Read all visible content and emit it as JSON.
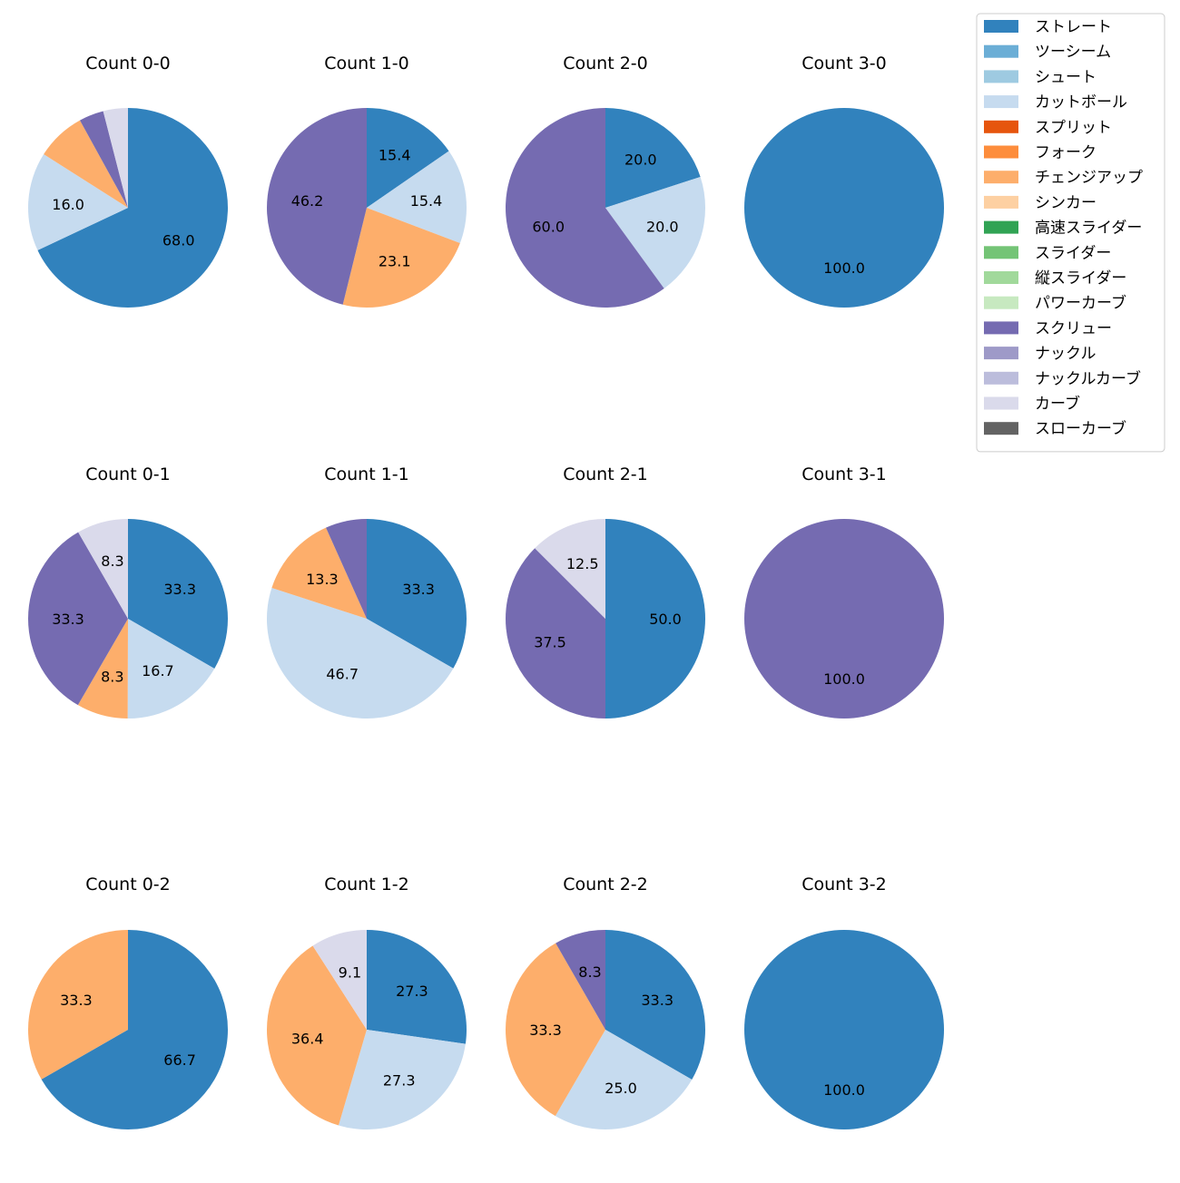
{
  "colors": {
    "ストレート": "#3182bd",
    "ツーシーム": "#6baed6",
    "シュート": "#9ecae1",
    "カットボール": "#c6dbef",
    "スプリット": "#e6550d",
    "フォーク": "#fd8d3c",
    "チェンジアップ": "#fdae6b",
    "シンカー": "#fdd0a2",
    "高速スライダー": "#31a354",
    "スライダー": "#74c476",
    "縦スライダー": "#a1d99b",
    "パワーカーブ": "#c7e9c0",
    "スクリュー": "#756bb1",
    "ナックル": "#9e9ac8",
    "ナックルカーブ": "#bcbddc",
    "カーブ": "#dadaeb",
    "スローカーブ": "#636363"
  },
  "legend": [
    "ストレート",
    "ツーシーム",
    "シュート",
    "カットボール",
    "スプリット",
    "フォーク",
    "チェンジアップ",
    "シンカー",
    "高速スライダー",
    "スライダー",
    "縦スライダー",
    "パワーカーブ",
    "スクリュー",
    "ナックル",
    "ナックルカーブ",
    "カーブ",
    "スローカーブ"
  ],
  "chart_data": [
    {
      "type": "pie",
      "title": "Count 0-0",
      "slices": [
        {
          "label": "ストレート",
          "value": 68.0,
          "text": "68.0"
        },
        {
          "label": "カットボール",
          "value": 16.0,
          "text": "16.0"
        },
        {
          "label": "チェンジアップ",
          "value": 8.0,
          "text": ""
        },
        {
          "label": "スクリュー",
          "value": 4.0,
          "text": ""
        },
        {
          "label": "カーブ",
          "value": 4.0,
          "text": ""
        }
      ]
    },
    {
      "type": "pie",
      "title": "Count 1-0",
      "slices": [
        {
          "label": "ストレート",
          "value": 15.4,
          "text": "15.4"
        },
        {
          "label": "カットボール",
          "value": 15.4,
          "text": "15.4"
        },
        {
          "label": "チェンジアップ",
          "value": 23.1,
          "text": "23.1"
        },
        {
          "label": "スクリュー",
          "value": 46.2,
          "text": "46.2"
        }
      ]
    },
    {
      "type": "pie",
      "title": "Count 2-0",
      "slices": [
        {
          "label": "ストレート",
          "value": 20.0,
          "text": "20.0"
        },
        {
          "label": "カットボール",
          "value": 20.0,
          "text": "20.0"
        },
        {
          "label": "スクリュー",
          "value": 60.0,
          "text": "60.0"
        }
      ]
    },
    {
      "type": "pie",
      "title": "Count 3-0",
      "slices": [
        {
          "label": "ストレート",
          "value": 100.0,
          "text": "100.0"
        }
      ]
    },
    {
      "type": "pie",
      "title": "Count 0-1",
      "slices": [
        {
          "label": "ストレート",
          "value": 33.3,
          "text": "33.3"
        },
        {
          "label": "カットボール",
          "value": 16.7,
          "text": "16.7"
        },
        {
          "label": "チェンジアップ",
          "value": 8.3,
          "text": "8.3"
        },
        {
          "label": "スクリュー",
          "value": 33.3,
          "text": "33.3"
        },
        {
          "label": "カーブ",
          "value": 8.3,
          "text": "8.3"
        }
      ]
    },
    {
      "type": "pie",
      "title": "Count 1-1",
      "slices": [
        {
          "label": "ストレート",
          "value": 33.3,
          "text": "33.3"
        },
        {
          "label": "カットボール",
          "value": 46.7,
          "text": "46.7"
        },
        {
          "label": "チェンジアップ",
          "value": 13.3,
          "text": "13.3"
        },
        {
          "label": "スクリュー",
          "value": 6.7,
          "text": ""
        }
      ]
    },
    {
      "type": "pie",
      "title": "Count 2-1",
      "slices": [
        {
          "label": "ストレート",
          "value": 50.0,
          "text": "50.0"
        },
        {
          "label": "スクリュー",
          "value": 37.5,
          "text": "37.5"
        },
        {
          "label": "カーブ",
          "value": 12.5,
          "text": "12.5"
        }
      ]
    },
    {
      "type": "pie",
      "title": "Count 3-1",
      "slices": [
        {
          "label": "スクリュー",
          "value": 100.0,
          "text": "100.0"
        }
      ]
    },
    {
      "type": "pie",
      "title": "Count 0-2",
      "slices": [
        {
          "label": "ストレート",
          "value": 66.7,
          "text": "66.7"
        },
        {
          "label": "チェンジアップ",
          "value": 33.3,
          "text": "33.3"
        }
      ]
    },
    {
      "type": "pie",
      "title": "Count 1-2",
      "slices": [
        {
          "label": "ストレート",
          "value": 27.3,
          "text": "27.3"
        },
        {
          "label": "カットボール",
          "value": 27.3,
          "text": "27.3"
        },
        {
          "label": "チェンジアップ",
          "value": 36.4,
          "text": "36.4"
        },
        {
          "label": "カーブ",
          "value": 9.1,
          "text": "9.1"
        }
      ]
    },
    {
      "type": "pie",
      "title": "Count 2-2",
      "slices": [
        {
          "label": "ストレート",
          "value": 33.3,
          "text": "33.3"
        },
        {
          "label": "カットボール",
          "value": 25.0,
          "text": "25.0"
        },
        {
          "label": "チェンジアップ",
          "value": 33.3,
          "text": "33.3"
        },
        {
          "label": "スクリュー",
          "value": 8.3,
          "text": "8.3"
        }
      ]
    },
    {
      "type": "pie",
      "title": "Count 3-2",
      "slices": [
        {
          "label": "ストレート",
          "value": 100.0,
          "text": "100.0"
        }
      ]
    }
  ]
}
